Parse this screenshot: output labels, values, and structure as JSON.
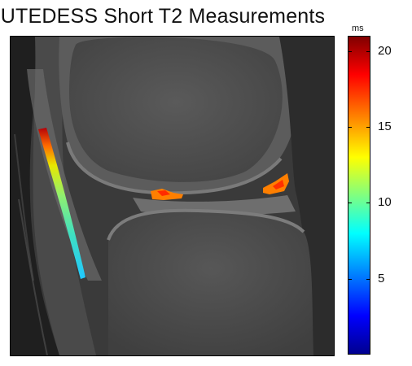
{
  "title": "UTEDESS Short T2 Measurements",
  "colorbar": {
    "unit": "ms",
    "ticks": [
      "20",
      "15",
      "10",
      "5"
    ],
    "tick_values": [
      20,
      15,
      10,
      5
    ],
    "range": [
      0,
      21
    ],
    "colormap": "jet"
  }
}
